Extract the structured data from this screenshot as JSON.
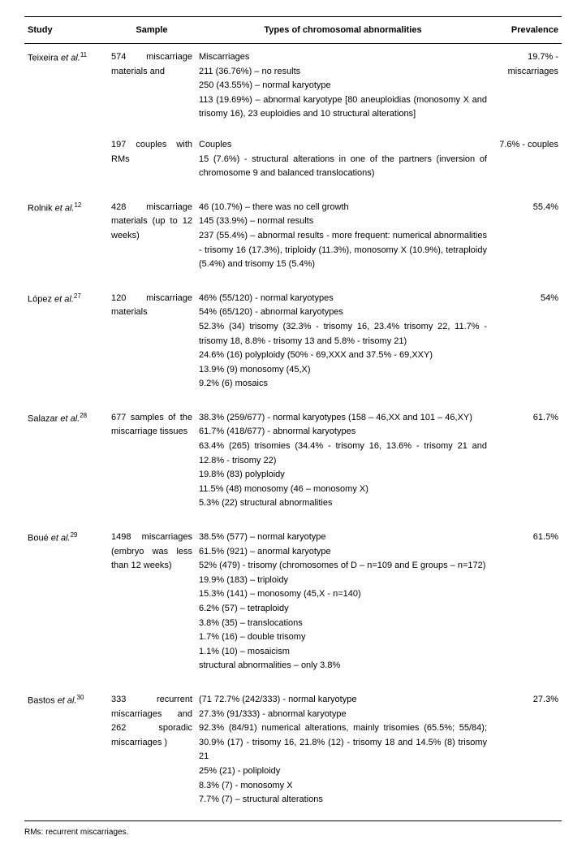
{
  "header": {
    "study": "Study",
    "sample": "Sample",
    "types": "Types of chromosomal abnormalities",
    "prevalence": "Prevalence"
  },
  "rows": [
    {
      "study_pre": "Teixeira ",
      "study_it": "et al.",
      "study_sup": "11",
      "sample": "574 miscarriage materials and",
      "types": "Miscarriages\n211 (36.76%) – no results\n250 (43.55%) – normal karyotype\n113 (19.69%) – abnormal karyotype  [80 aneuploidias (monosomy X and trisomy 16), 23 euploidies and 10 structural alterations]",
      "prevalence": "19.7% - miscarriages"
    },
    {
      "study_pre": "",
      "study_it": "",
      "study_sup": "",
      "sample": "197 couples with RMs",
      "types": "Couples\n15 (7.6%) - structural alterations in one of the partners (inversion of chromosome 9 and balanced translocations)",
      "prevalence": "7.6% - couples"
    },
    {
      "study_pre": "Rolnik ",
      "study_it": "et al.",
      "study_sup": "12",
      "sample": "428 miscarriage materials (up to 12 weeks)",
      "types": "46 (10.7%) – there was no cell growth\n145 (33.9%) – normal results\n237 (55.4%) – abnormal results - more frequent:  numerical abnormalities - trisomy 16 (17.3%), triploidy (11.3%), monosomy X (10.9%), tetraploidy (5.4%) and trisomy 15 (5.4%)",
      "prevalence": "55.4%"
    },
    {
      "study_pre": "López ",
      "study_it": "et al.",
      "study_sup": "27",
      "sample": "120 miscarriage materials",
      "types": "46% (55/120) - normal karyotypes\n54% (65/120) - abnormal karyotypes\n52.3% (34) trisomy (32.3% - trisomy 16, 23.4% trisomy 22, 11.7% - trisomy 18, 8.8% - trisomy 13 and 5.8% - trisomy 21)\n24.6% (16) polyploidy (50% - 69,XXX and 37.5% - 69,XXY)\n13.9% (9) monosomy (45,X)\n9.2% (6) mosaics",
      "prevalence": "54%"
    },
    {
      "study_pre": "Salazar ",
      "study_it": "et al.",
      "study_sup": "28",
      "sample": "677 samples of the miscarriage tissues",
      "types": "38.3% (259/677) - normal karyotypes (158 – 46,XX and 101 – 46,XY)\n61.7% (418/677) - abnormal karyotypes\n63.4% (265) trisomies (34.4% - trisomy 16, 13.6% - trisomy 21 and 12.8% - trisomy 22)\n19.8% (83) polyploidy\n11.5% (48) monosomy (46 – monosomy X)\n5.3% (22) structural abnormalities",
      "prevalence": "61.7%"
    },
    {
      "study_pre": "Boué ",
      "study_it": "et al.",
      "study_sup": "29",
      "sample": "1498 miscarriages (embryo was less than 12 weeks)",
      "types": "38.5% (577) – normal karyotype\n61.5% (921) – anormal karyotype\n52% (479) - trisomy (chromosomes of D – n=109 and E groups – n=172)\n19.9% (183) – triploidy\n15.3% (141) – monosomy (45,X - n=140)\n6.2% (57) – tetraploidy\n3.8% (35) – translocations\n1.7% (16) – double trisomy\n1.1% (10) – mosaicism\nstructural abnormalities – only 3.8%",
      "prevalence": "61.5%"
    },
    {
      "study_pre": "Bastos ",
      "study_it": "et al.",
      "study_sup": "30",
      "sample": "333 recurrent miscarriages and 262 sporadic miscarriages )",
      "types": "(71 72.7% (242/333) - normal karyotype\n27.3% (91/333) - abnormal karyotype\n92.3% (84/91) numerical alterations, mainly trisomies (65.5%; 55/84); 30.9% (17) - trisomy 16, 21.8% (12) - trisomy 18 and 14.5% (8) trisomy 21\n25% (21) - poliploidy\n8.3% (7) - monosomy X\n7.7% (7) – structural alterations",
      "prevalence": "27.3%"
    }
  ],
  "footnote": "RMs: recurrent miscarriages."
}
